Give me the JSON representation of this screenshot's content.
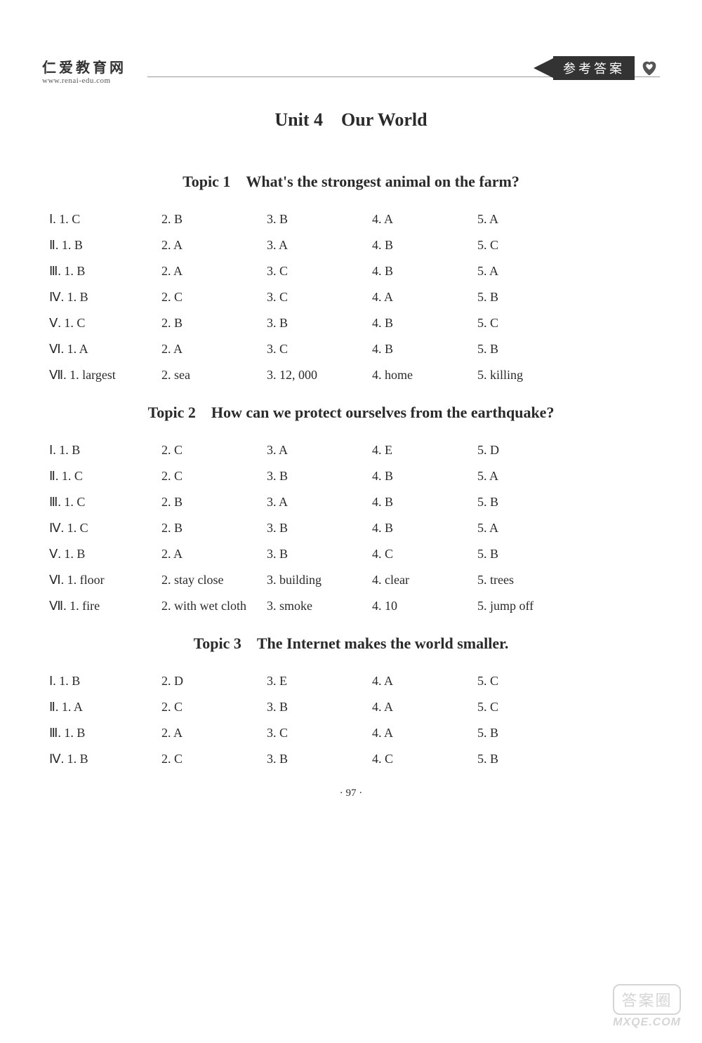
{
  "header": {
    "site_cn": "仁爱教育网",
    "site_url": "www.renai-edu.com",
    "tag_text": "参考答案"
  },
  "unit_title": "Unit 4 Our World",
  "page_number": "· 97 ·",
  "watermark": {
    "text": "答案圈",
    "url": "MXQE.COM"
  },
  "topics": [
    {
      "title": "Topic 1 What's the strongest animal on the farm?",
      "rows": [
        {
          "label": "Ⅰ. 1. C",
          "cells": [
            "2. B",
            "3. B",
            "4. A",
            "5. A"
          ]
        },
        {
          "label": "Ⅱ. 1. B",
          "cells": [
            "2. A",
            "3. A",
            "4. B",
            "5. C"
          ]
        },
        {
          "label": "Ⅲ. 1. B",
          "cells": [
            "2. A",
            "3. C",
            "4. B",
            "5. A"
          ]
        },
        {
          "label": "Ⅳ. 1. B",
          "cells": [
            "2. C",
            "3. C",
            "4. A",
            "5. B"
          ]
        },
        {
          "label": "Ⅴ. 1. C",
          "cells": [
            "2. B",
            "3. B",
            "4. B",
            "5. C"
          ]
        },
        {
          "label": "Ⅵ. 1. A",
          "cells": [
            "2. A",
            "3. C",
            "4. B",
            "5. B"
          ]
        },
        {
          "label": "Ⅶ. 1. largest",
          "cells": [
            "2. sea",
            "3. 12, 000",
            "4. home",
            "5. killing"
          ]
        }
      ]
    },
    {
      "title": "Topic 2 How can we protect ourselves from the earthquake?",
      "rows": [
        {
          "label": "Ⅰ. 1. B",
          "cells": [
            "2. C",
            "3. A",
            "4. E",
            "5. D"
          ]
        },
        {
          "label": "Ⅱ. 1. C",
          "cells": [
            "2. C",
            "3. B",
            "4. B",
            "5. A"
          ]
        },
        {
          "label": "Ⅲ. 1. C",
          "cells": [
            "2. B",
            "3. A",
            "4. B",
            "5. B"
          ]
        },
        {
          "label": "Ⅳ. 1. C",
          "cells": [
            "2. B",
            "3. B",
            "4. B",
            "5. A"
          ]
        },
        {
          "label": "Ⅴ. 1. B",
          "cells": [
            "2. A",
            "3. B",
            "4. C",
            "5. B"
          ]
        },
        {
          "label": "Ⅵ. 1. floor",
          "cells": [
            "2. stay close",
            "3. building",
            "4. clear",
            "5. trees"
          ]
        },
        {
          "label": "Ⅶ. 1. fire",
          "cells": [
            "2. with wet cloth",
            "3. smoke",
            "4. 10",
            "5. jump off"
          ]
        }
      ]
    },
    {
      "title": "Topic 3 The Internet makes the world smaller.",
      "rows": [
        {
          "label": "Ⅰ. 1. B",
          "cells": [
            "2. D",
            "3. E",
            "4. A",
            "5. C"
          ]
        },
        {
          "label": "Ⅱ. 1. A",
          "cells": [
            "2. C",
            "3. B",
            "4. A",
            "5. C"
          ]
        },
        {
          "label": "Ⅲ. 1. B",
          "cells": [
            "2. A",
            "3. C",
            "4. A",
            "5. B"
          ]
        },
        {
          "label": "Ⅳ. 1. B",
          "cells": [
            "2. C",
            "3. B",
            "4. C",
            "5. B"
          ]
        }
      ]
    }
  ]
}
